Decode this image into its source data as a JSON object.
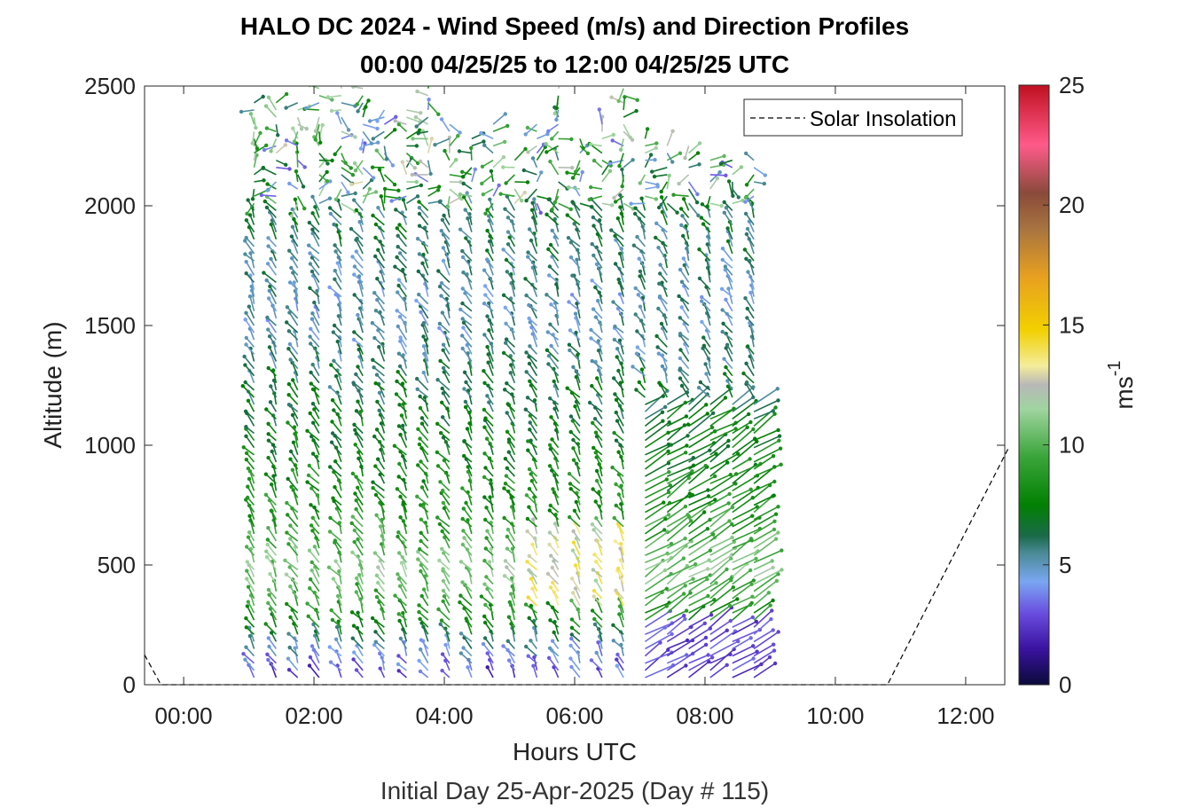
{
  "chart_data": {
    "type": "quiver-profile",
    "title": "HALO DC 2024 - Wind Speed (m/s) and Direction Profiles",
    "subtitle": "00:00 04/25/25 to 12:00 04/25/25  UTC",
    "xlabel": "Hours UTC",
    "xlabel2": "Initial Day 25-Apr-2025 (Day # 115)",
    "ylabel": "Altitude (m)",
    "xlim": [
      -0.6,
      12.6
    ],
    "ylim": [
      0,
      2500
    ],
    "x_ticks": [
      {
        "value": 0,
        "label": "00:00"
      },
      {
        "value": 2,
        "label": "02:00"
      },
      {
        "value": 4,
        "label": "04:00"
      },
      {
        "value": 6,
        "label": "06:00"
      },
      {
        "value": 8,
        "label": "08:00"
      },
      {
        "value": 10,
        "label": "10:00"
      },
      {
        "value": 12,
        "label": "12:00"
      }
    ],
    "y_ticks": [
      {
        "value": 0,
        "label": "0"
      },
      {
        "value": 500,
        "label": "500"
      },
      {
        "value": 1000,
        "label": "1000"
      },
      {
        "value": 1500,
        "label": "1500"
      },
      {
        "value": 2000,
        "label": "2000"
      },
      {
        "value": 2500,
        "label": "2500"
      }
    ],
    "colorbar": {
      "label": "ms",
      "label_exponent": "-1",
      "range": [
        0,
        25
      ],
      "ticks": [
        {
          "value": 0,
          "label": "0"
        },
        {
          "value": 5,
          "label": "5"
        },
        {
          "value": 10,
          "label": "10"
        },
        {
          "value": 15,
          "label": "15"
        },
        {
          "value": 20,
          "label": "20"
        },
        {
          "value": 25,
          "label": "25"
        }
      ],
      "stops": [
        {
          "v": 0,
          "c": "#0a0a3a"
        },
        {
          "v": 1.5,
          "c": "#3a12a0"
        },
        {
          "v": 3,
          "c": "#6a4ee0"
        },
        {
          "v": 4.3,
          "c": "#7aa6f2"
        },
        {
          "v": 5.5,
          "c": "#4a8a96"
        },
        {
          "v": 6.2,
          "c": "#1a6a4a"
        },
        {
          "v": 7.5,
          "c": "#028002"
        },
        {
          "v": 9.5,
          "c": "#3aa53a"
        },
        {
          "v": 11.5,
          "c": "#a0d4a0"
        },
        {
          "v": 12.5,
          "c": "#b8b8b8"
        },
        {
          "v": 13.3,
          "c": "#f4ec9a"
        },
        {
          "v": 14.8,
          "c": "#f2d000"
        },
        {
          "v": 17,
          "c": "#e8a020"
        },
        {
          "v": 19,
          "c": "#a87440"
        },
        {
          "v": 20.5,
          "c": "#8a4a3a"
        },
        {
          "v": 22.5,
          "c": "#ff5a8a"
        },
        {
          "v": 25,
          "c": "#c01020"
        }
      ]
    },
    "legend": {
      "position": "top-right",
      "entries": [
        "Solar Insolation"
      ]
    },
    "solar_insolation": {
      "x": [
        -0.6,
        -0.35,
        10.8,
        12.65
      ],
      "y": [
        125,
        0,
        0,
        985
      ]
    },
    "profiles": {
      "times": [
        1.08,
        1.42,
        1.75,
        2.08,
        2.42,
        2.75,
        3.08,
        3.42,
        3.75,
        4.08,
        4.42,
        4.75,
        5.08,
        5.42,
        5.75,
        6.08,
        6.42,
        6.75,
        7.08,
        7.42,
        7.75,
        8.08,
        8.42,
        8.75
      ],
      "altitude_step_m": 30,
      "altitude_min_m": 30,
      "altitude_max_m": 2460,
      "top_altitude_m": [
        2450,
        2450,
        2450,
        2500,
        2500,
        2500,
        2400,
        2400,
        2500,
        2350,
        2300,
        2350,
        2200,
        2350,
        2500,
        2300,
        2350,
        2500,
        2300,
        2250,
        2250,
        2200,
        2200,
        2200
      ],
      "barb_speed_by_altitude_m": [
        {
          "alt": 0,
          "speed": 2.5
        },
        {
          "alt": 150,
          "speed": 5
        },
        {
          "alt": 250,
          "speed": 8
        },
        {
          "alt": 450,
          "speed": 11
        },
        {
          "alt": 700,
          "speed": 8.5
        },
        {
          "alt": 1100,
          "speed": 7
        },
        {
          "alt": 1500,
          "speed": 5
        },
        {
          "alt": 2000,
          "speed": 6.5
        },
        {
          "alt": 2450,
          "speed": 7
        }
      ]
    }
  }
}
